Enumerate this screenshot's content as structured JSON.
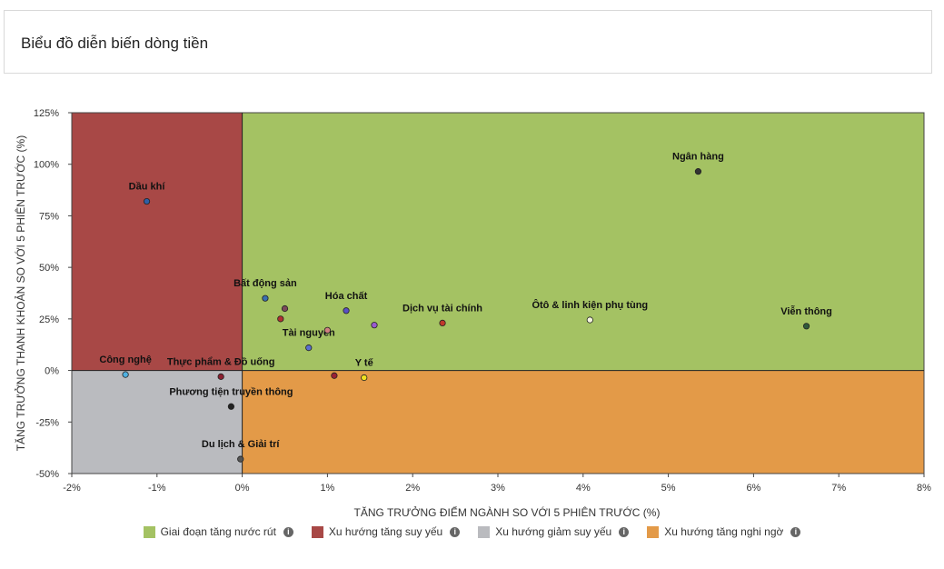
{
  "header": {
    "title": "Biểu đồ diễn biến dòng tiền"
  },
  "chart_data": {
    "type": "scatter",
    "xlabel": "TĂNG TRƯỞNG ĐIỂM NGÀNH SO VỚI 5 PHIÊN TRƯỚC (%)",
    "ylabel": "TĂNG TRƯỞNG THANH KHOẢN SO VỚI 5 PHIÊN TRƯỚC (%)",
    "xlim": [
      -2,
      8
    ],
    "ylim": [
      -50,
      125
    ],
    "x_ticks": [
      -2,
      -1,
      0,
      1,
      2,
      3,
      4,
      5,
      6,
      7,
      8
    ],
    "x_tick_labels": [
      "-2%",
      "-1%",
      "0%",
      "1%",
      "2%",
      "3%",
      "4%",
      "5%",
      "6%",
      "7%",
      "8%"
    ],
    "y_ticks": [
      -50,
      -25,
      0,
      25,
      50,
      75,
      100,
      125
    ],
    "y_tick_labels": [
      "-50%",
      "-25%",
      "0%",
      "25%",
      "50%",
      "75%",
      "100%",
      "125%"
    ],
    "quadrants": [
      {
        "name": "Giai đoạn tăng nước rút",
        "color": "#a4c263"
      },
      {
        "name": "Xu hướng tăng suy yếu",
        "color": "#a84846"
      },
      {
        "name": "Xu hướng giảm suy yếu",
        "color": "#babbbf"
      },
      {
        "name": "Xu hướng tăng nghi ngờ",
        "color": "#e39a48"
      }
    ],
    "points": [
      {
        "label": "Ngân hàng",
        "x": 5.35,
        "y": 96.5,
        "color": "#333333"
      },
      {
        "label": "Dầu khí",
        "x": -1.12,
        "y": 82,
        "color": "#2f5fa5"
      },
      {
        "label": "Viễn thông",
        "x": 6.62,
        "y": 21.5,
        "color": "#2f5a3a"
      },
      {
        "label": "Ôtô & linh kiện phụ tùng",
        "x": 4.08,
        "y": 24.5,
        "color": "#f5f5e0"
      },
      {
        "label": "Dịch vụ tài chính",
        "x": 2.35,
        "y": 23,
        "color": "#c0392b"
      },
      {
        "label": "Bất động sản",
        "x": 0.27,
        "y": 35,
        "color": "#3a6fb0"
      },
      {
        "label": "Hóa chất",
        "x": 1.22,
        "y": 29,
        "color": "#5a4fc4"
      },
      {
        "label": "Tài nguyên",
        "x": 0.78,
        "y": 11,
        "color": "#5a6fd0"
      },
      {
        "label": "Y tế",
        "x": 1.43,
        "y": -3.5,
        "color": "#f0e020"
      },
      {
        "label": "Công nghệ",
        "x": -1.37,
        "y": -2,
        "color": "#4fb0e0"
      },
      {
        "label": "Thực phẩm & Đồ uống",
        "x": -0.25,
        "y": -3,
        "color": "#8b2030"
      },
      {
        "label": "Phương tiện truyền thông",
        "x": -0.13,
        "y": -17.5,
        "color": "#222222"
      },
      {
        "label": "Du lịch & Giải trí",
        "x": -0.02,
        "y": -43,
        "color": "#555555"
      },
      {
        "label": "",
        "x": 0.5,
        "y": 30,
        "color": "#7a4a5a"
      },
      {
        "label": "",
        "x": 0.45,
        "y": 25,
        "color": "#b03030"
      },
      {
        "label": "",
        "x": 1.55,
        "y": 22,
        "color": "#9a5ad0"
      },
      {
        "label": "",
        "x": 1.0,
        "y": 19.5,
        "color": "#d08080"
      },
      {
        "label": "",
        "x": 1.08,
        "y": -2.5,
        "color": "#9a2035"
      }
    ]
  },
  "legend": {
    "items": [
      {
        "label": "Giai đoạn tăng nước rút",
        "color": "#a4c263",
        "icon": "info-icon"
      },
      {
        "label": "Xu hướng tăng suy yếu",
        "color": "#a84846",
        "icon": "info-icon"
      },
      {
        "label": "Xu hướng giảm suy yếu",
        "color": "#babbbf",
        "icon": "info-icon"
      },
      {
        "label": "Xu hướng tăng nghi ngờ",
        "color": "#e39a48",
        "icon": "info-icon"
      }
    ]
  }
}
